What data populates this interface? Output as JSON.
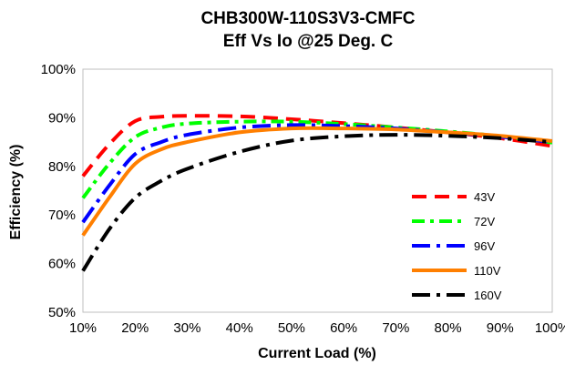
{
  "chart_data": {
    "type": "line",
    "title": "CHB300W-110S3V3-CMFC",
    "subtitle": "Eff Vs Io @25 Deg. C",
    "xlabel": "Current Load (%)",
    "ylabel": "Efficiency (%)",
    "xlim": [
      10,
      100
    ],
    "ylim": [
      50,
      100
    ],
    "x_ticks": [
      "10%",
      "20%",
      "30%",
      "40%",
      "50%",
      "60%",
      "70%",
      "80%",
      "90%",
      "100%"
    ],
    "y_ticks": [
      "50%",
      "60%",
      "70%",
      "80%",
      "90%",
      "100%"
    ],
    "grid": false,
    "legend": "right",
    "x": [
      10,
      15,
      20,
      25,
      30,
      40,
      50,
      60,
      70,
      80,
      90,
      100
    ],
    "series": [
      {
        "name": "43V",
        "color": "#ff0000",
        "dash": "dash",
        "values": [
          78.0,
          84.5,
          89.3,
          90.2,
          90.4,
          90.3,
          89.7,
          88.9,
          88.0,
          87.0,
          85.8,
          84.2
        ]
      },
      {
        "name": "72V",
        "color": "#00ff00",
        "dash": "dashdot",
        "values": [
          73.5,
          80.5,
          86.0,
          88.0,
          88.8,
          89.2,
          89.2,
          88.7,
          88.0,
          87.2,
          86.2,
          84.9
        ]
      },
      {
        "name": "96V",
        "color": "#0000ff",
        "dash": "longdashdot",
        "values": [
          68.5,
          76.0,
          82.5,
          85.0,
          86.5,
          88.0,
          88.5,
          88.3,
          87.8,
          87.0,
          86.1,
          85.0
        ]
      },
      {
        "name": "110V",
        "color": "#ff7f00",
        "dash": "solid",
        "values": [
          65.8,
          73.5,
          80.5,
          83.5,
          85.0,
          87.0,
          87.8,
          87.8,
          87.6,
          87.0,
          86.3,
          85.2
        ]
      },
      {
        "name": "160V",
        "color": "#000000",
        "dash": "longdashdot",
        "values": [
          58.5,
          67.0,
          73.5,
          77.0,
          79.5,
          83.0,
          85.3,
          86.2,
          86.5,
          86.3,
          85.8,
          85.0
        ]
      }
    ]
  }
}
